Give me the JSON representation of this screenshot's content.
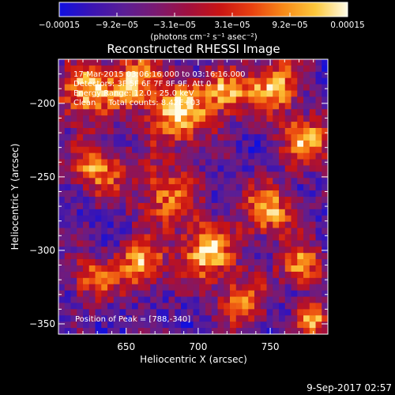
{
  "chart_data": {
    "type": "heatmap",
    "title": "Reconstructed RHESSI Image",
    "xlabel": "Heliocentric X (arcsec)",
    "ylabel": "Heliocentric Y (arcsec)",
    "xlim": [
      603,
      790
    ],
    "ylim": [
      -357,
      -170
    ],
    "x_ticks": [
      {
        "value": 650,
        "label": "650"
      },
      {
        "value": 700,
        "label": "700"
      },
      {
        "value": 750,
        "label": "750"
      }
    ],
    "y_ticks": [
      {
        "value": -200,
        "label": "−200"
      },
      {
        "value": -250,
        "label": "−250"
      },
      {
        "value": -300,
        "label": "−300"
      },
      {
        "value": -350,
        "label": "−350"
      }
    ],
    "colorbar": {
      "range": [
        -0.00015,
        0.00015
      ],
      "tick_labels": [
        "−0.00015",
        "−9.2e−05",
        "−3.1e−05",
        "3.1e−05",
        "9.2e−05",
        "0.00015"
      ],
      "unit_label": "(photons cm⁻² s⁻¹ asec⁻²)",
      "colors": [
        "#1010e0",
        "#3a14b4",
        "#5a1e96",
        "#7a1a72",
        "#a01040",
        "#c81414",
        "#e84010",
        "#f88a18",
        "#fcc83c",
        "#fffce8"
      ]
    },
    "annotations": [
      "17-Mar-2015 03:06:16.000 to 03:16:16.000",
      "Detectors: 3F 5F 6F 7F 8F 9F, Att 0",
      "Energy Range: 12.0 - 25.0 keV",
      "Clean     Total counts: 8.42E+03"
    ],
    "peak_label": "Position of Peak = [788,-340]",
    "peak": [
      788,
      -340
    ]
  },
  "footer": {
    "timestamp": "9-Sep-2017 02:57"
  }
}
